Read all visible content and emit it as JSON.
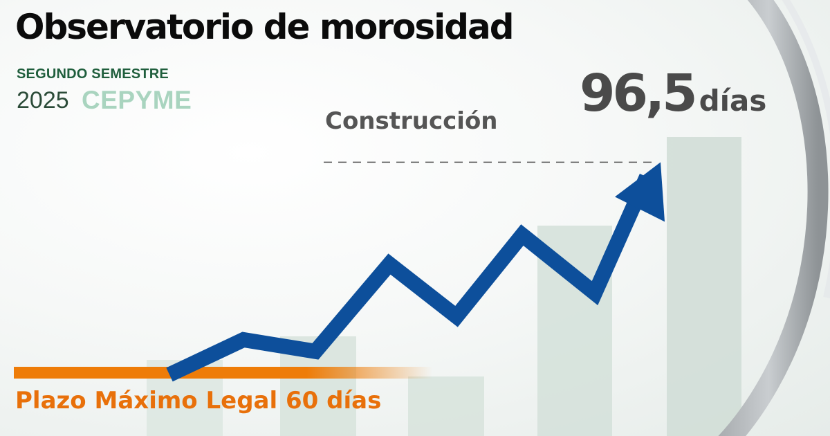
{
  "header": {
    "title": "Observatorio de morosidad",
    "subtitle": "SEGUNDO SEMESTRE",
    "year": "2025",
    "brand": "CEPYME"
  },
  "highlight": {
    "sector": "Construcción",
    "value": "96,5",
    "unit": "días"
  },
  "reference": {
    "label": "Plazo Máximo Legal 60 días"
  },
  "colors": {
    "trend_line": "#0d4f9b",
    "legal_bar": "#ee7c08",
    "title": "#0b0b0b",
    "subtitle": "#1f5e3c",
    "brand": "#a9d4bf",
    "value_text": "#4a4a4a"
  },
  "chart_data": {
    "type": "line",
    "title": "",
    "xlabel": "",
    "ylabel": "",
    "reference_value": 60,
    "final_value": 96.5,
    "final_label": "Construcción",
    "x": [
      1,
      2,
      3,
      4,
      5,
      6,
      7,
      8,
      9
    ],
    "y": [
      60,
      66,
      64,
      79,
      70,
      84,
      74,
      94,
      96.5
    ],
    "ylim": [
      56,
      100
    ],
    "grid": false,
    "legend": "none"
  }
}
